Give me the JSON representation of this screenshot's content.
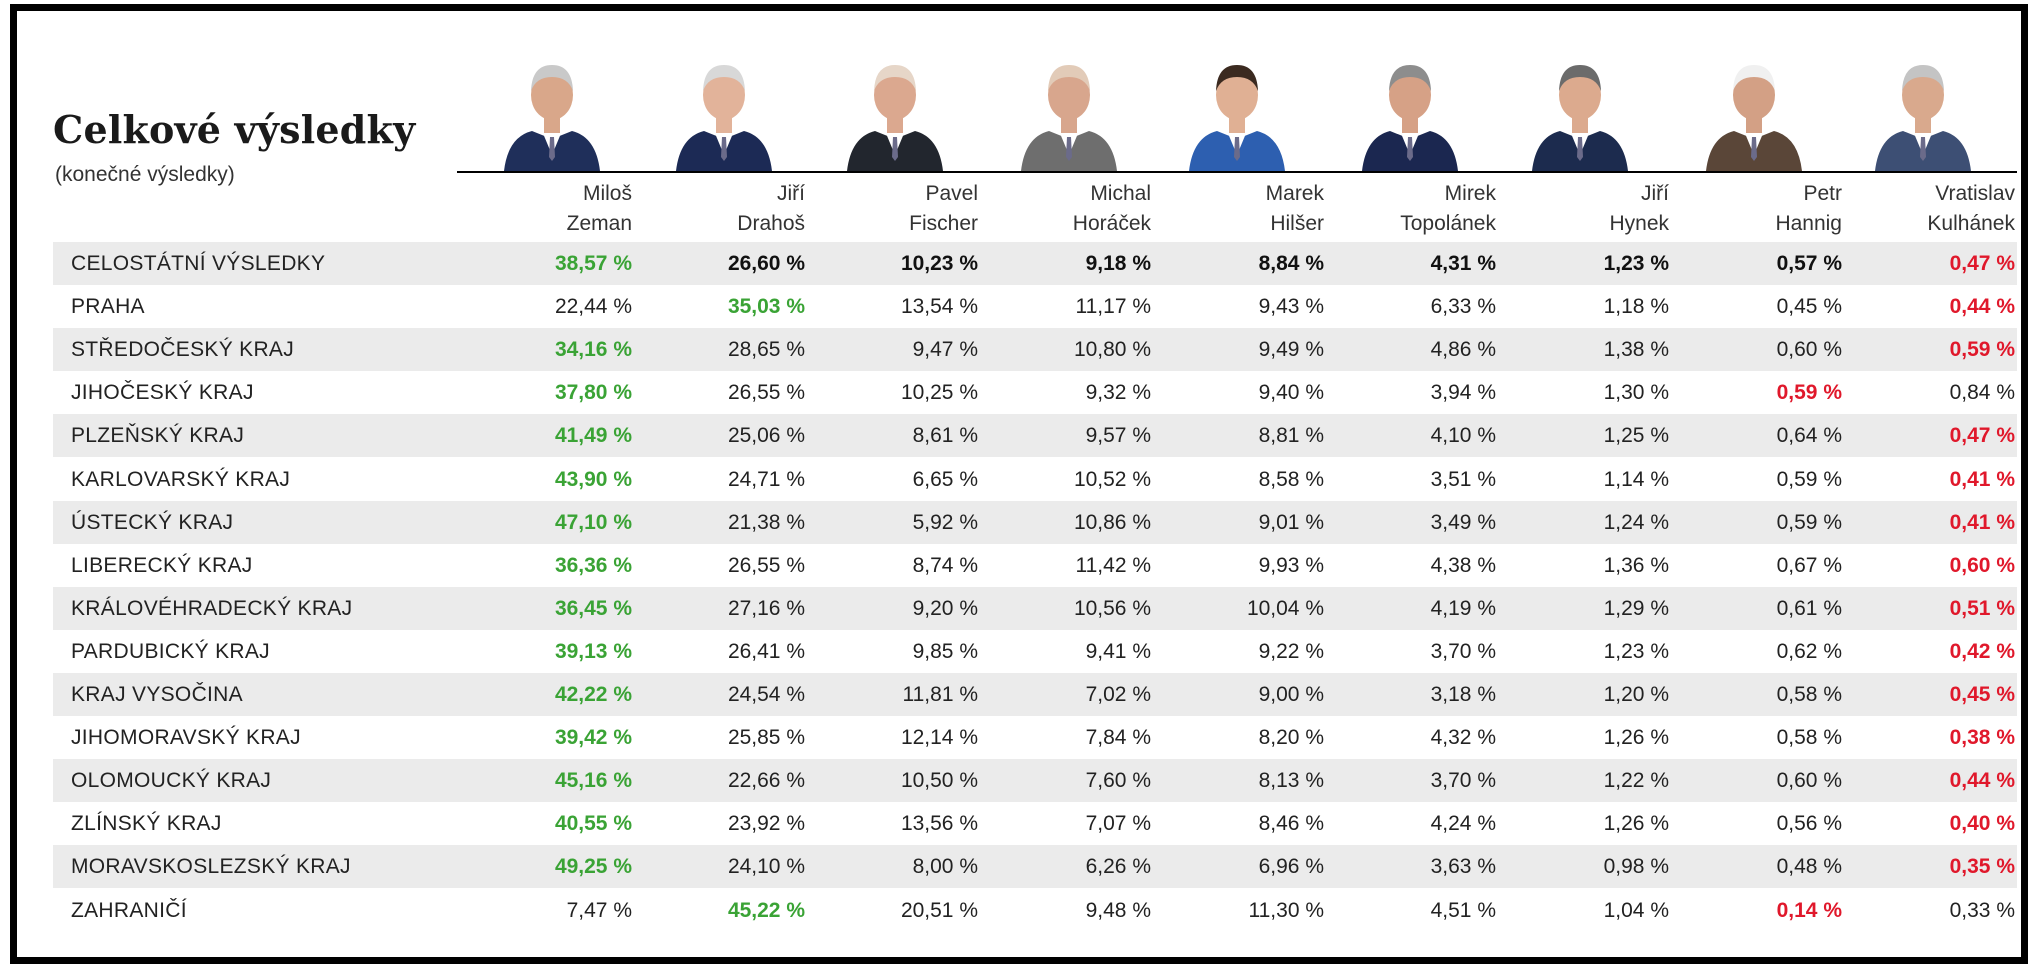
{
  "title": "Celkové výsledky",
  "subtitle": "(konečné výsledky)",
  "candidates": [
    {
      "first": "Miloš",
      "last": "Zeman"
    },
    {
      "first": "Jiří",
      "last": "Drahoš"
    },
    {
      "first": "Pavel",
      "last": "Fischer"
    },
    {
      "first": "Michal",
      "last": "Horáček"
    },
    {
      "first": "Marek",
      "last": "Hilšer"
    },
    {
      "first": "Mirek",
      "last": "Topolánek"
    },
    {
      "first": "Jiří",
      "last": "Hynek"
    },
    {
      "first": "Petr",
      "last": "Hannig"
    },
    {
      "first": "Vratislav",
      "last": "Kulhánek"
    }
  ],
  "rows": [
    {
      "region": "CELOSTÁTNÍ VÝSLEDKY",
      "values": [
        "38,57 %",
        "26,60 %",
        "10,23 %",
        "9,18 %",
        "8,84 %",
        "4,31 %",
        "1,23 %",
        "0,57 %",
        "0,47 %"
      ],
      "max_index": 0,
      "min_index": 8,
      "national": true
    },
    {
      "region": "PRAHA",
      "values": [
        "22,44 %",
        "35,03 %",
        "13,54 %",
        "11,17 %",
        "9,43 %",
        "6,33 %",
        "1,18 %",
        "0,45 %",
        "0,44 %"
      ],
      "max_index": 1,
      "min_index": 8
    },
    {
      "region": "STŘEDOČESKÝ KRAJ",
      "values": [
        "34,16 %",
        "28,65 %",
        "9,47 %",
        "10,80 %",
        "9,49 %",
        "4,86 %",
        "1,38 %",
        "0,60 %",
        "0,59 %"
      ],
      "max_index": 0,
      "min_index": 8
    },
    {
      "region": "JIHOČESKÝ KRAJ",
      "values": [
        "37,80 %",
        "26,55 %",
        "10,25 %",
        "9,32 %",
        "9,40 %",
        "3,94 %",
        "1,30 %",
        "0,59 %",
        "0,84 %"
      ],
      "max_index": 0,
      "min_index": 7
    },
    {
      "region": "PLZEŇSKÝ KRAJ",
      "values": [
        "41,49 %",
        "25,06 %",
        "8,61 %",
        "9,57 %",
        "8,81 %",
        "4,10 %",
        "1,25 %",
        "0,64 %",
        "0,47 %"
      ],
      "max_index": 0,
      "min_index": 8
    },
    {
      "region": "KARLOVARSKÝ KRAJ",
      "values": [
        "43,90 %",
        "24,71 %",
        "6,65 %",
        "10,52 %",
        "8,58 %",
        "3,51 %",
        "1,14 %",
        "0,59 %",
        "0,41 %"
      ],
      "max_index": 0,
      "min_index": 8
    },
    {
      "region": "ÚSTECKÝ KRAJ",
      "values": [
        "47,10 %",
        "21,38 %",
        "5,92 %",
        "10,86 %",
        "9,01 %",
        "3,49 %",
        "1,24 %",
        "0,59 %",
        "0,41 %"
      ],
      "max_index": 0,
      "min_index": 8
    },
    {
      "region": "LIBERECKÝ KRAJ",
      "values": [
        "36,36 %",
        "26,55 %",
        "8,74 %",
        "11,42 %",
        "9,93 %",
        "4,38 %",
        "1,36 %",
        "0,67 %",
        "0,60 %"
      ],
      "max_index": 0,
      "min_index": 8
    },
    {
      "region": "KRÁLOVÉHRADECKÝ KRAJ",
      "values": [
        "36,45 %",
        "27,16 %",
        "9,20 %",
        "10,56 %",
        "10,04 %",
        "4,19 %",
        "1,29 %",
        "0,61 %",
        "0,51 %"
      ],
      "max_index": 0,
      "min_index": 8
    },
    {
      "region": "PARDUBICKÝ KRAJ",
      "values": [
        "39,13 %",
        "26,41 %",
        "9,85 %",
        "9,41 %",
        "9,22 %",
        "3,70 %",
        "1,23 %",
        "0,62 %",
        "0,42 %"
      ],
      "max_index": 0,
      "min_index": 8
    },
    {
      "region": "KRAJ VYSOČINA",
      "values": [
        "42,22 %",
        "24,54 %",
        "11,81 %",
        "7,02 %",
        "9,00 %",
        "3,18 %",
        "1,20 %",
        "0,58 %",
        "0,45 %"
      ],
      "max_index": 0,
      "min_index": 8
    },
    {
      "region": "JIHOMORAVSKÝ KRAJ",
      "values": [
        "39,42 %",
        "25,85 %",
        "12,14 %",
        "7,84 %",
        "8,20 %",
        "4,32 %",
        "1,26 %",
        "0,58 %",
        "0,38 %"
      ],
      "max_index": 0,
      "min_index": 8
    },
    {
      "region": "OLOMOUCKÝ KRAJ",
      "values": [
        "45,16 %",
        "22,66 %",
        "10,50 %",
        "7,60 %",
        "8,13 %",
        "3,70 %",
        "1,22 %",
        "0,60 %",
        "0,44 %"
      ],
      "max_index": 0,
      "min_index": 8
    },
    {
      "region": "ZLÍNSKÝ KRAJ",
      "values": [
        "40,55 %",
        "23,92 %",
        "13,56 %",
        "7,07 %",
        "8,46 %",
        "4,24 %",
        "1,26 %",
        "0,56 %",
        "0,40 %"
      ],
      "max_index": 0,
      "min_index": 8
    },
    {
      "region": "MORAVSKOSLEZSKÝ KRAJ",
      "values": [
        "49,25 %",
        "24,10 %",
        "8,00 %",
        "6,26 %",
        "6,96 %",
        "3,63 %",
        "0,98 %",
        "0,48 %",
        "0,35 %"
      ],
      "max_index": 0,
      "min_index": 8
    },
    {
      "region": "ZAHRANIČÍ",
      "values": [
        "7,47 %",
        "45,22 %",
        "20,51 %",
        "9,48 %",
        "11,30 %",
        "4,51 %",
        "1,04 %",
        "0,14 %",
        "0,33 %"
      ],
      "max_index": 1,
      "min_index": 7
    }
  ],
  "colors": {
    "max": "#3aa335",
    "min": "#e0182b",
    "row_shade": "#ebebeb"
  },
  "chart_data": {
    "type": "table",
    "title": "Celkové výsledky",
    "subtitle": "(konečné výsledky)",
    "columns": [
      "Miloš Zeman",
      "Jiří Drahoš",
      "Pavel Fischer",
      "Michal Horáček",
      "Marek Hilšer",
      "Mirek Topolánek",
      "Jiří Hynek",
      "Petr Hannig",
      "Vratislav Kulhánek"
    ],
    "rows": [
      "CELOSTÁTNÍ VÝSLEDKY",
      "PRAHA",
      "STŘEDOČESKÝ KRAJ",
      "JIHOČESKÝ KRAJ",
      "PLZEŇSKÝ KRAJ",
      "KARLOVARSKÝ KRAJ",
      "ÚSTECKÝ KRAJ",
      "LIBERECKÝ KRAJ",
      "KRÁLOVÉHRADECKÝ KRAJ",
      "PARDUBICKÝ KRAJ",
      "KRAJ VYSOČINA",
      "JIHOMORAVSKÝ KRAJ",
      "OLOMOUCKÝ KRAJ",
      "ZLÍNSKÝ KRAJ",
      "MORAVSKOSLEZSKÝ KRAJ",
      "ZAHRANIČÍ"
    ],
    "values": [
      [
        38.57,
        26.6,
        10.23,
        9.18,
        8.84,
        4.31,
        1.23,
        0.57,
        0.47
      ],
      [
        22.44,
        35.03,
        13.54,
        11.17,
        9.43,
        6.33,
        1.18,
        0.45,
        0.44
      ],
      [
        34.16,
        28.65,
        9.47,
        10.8,
        9.49,
        4.86,
        1.38,
        0.6,
        0.59
      ],
      [
        37.8,
        26.55,
        10.25,
        9.32,
        9.4,
        3.94,
        1.3,
        0.59,
        0.84
      ],
      [
        41.49,
        25.06,
        8.61,
        9.57,
        8.81,
        4.1,
        1.25,
        0.64,
        0.47
      ],
      [
        43.9,
        24.71,
        6.65,
        10.52,
        8.58,
        3.51,
        1.14,
        0.59,
        0.41
      ],
      [
        47.1,
        21.38,
        5.92,
        10.86,
        9.01,
        3.49,
        1.24,
        0.59,
        0.41
      ],
      [
        36.36,
        26.55,
        8.74,
        11.42,
        9.93,
        4.38,
        1.36,
        0.67,
        0.6
      ],
      [
        36.45,
        27.16,
        9.2,
        10.56,
        10.04,
        4.19,
        1.29,
        0.61,
        0.51
      ],
      [
        39.13,
        26.41,
        9.85,
        9.41,
        9.22,
        3.7,
        1.23,
        0.62,
        0.42
      ],
      [
        42.22,
        24.54,
        11.81,
        7.02,
        9.0,
        3.18,
        1.2,
        0.58,
        0.45
      ],
      [
        39.42,
        25.85,
        12.14,
        7.84,
        8.2,
        4.32,
        1.26,
        0.58,
        0.38
      ],
      [
        45.16,
        22.66,
        10.5,
        7.6,
        8.13,
        3.7,
        1.22,
        0.6,
        0.44
      ],
      [
        40.55,
        23.92,
        13.56,
        7.07,
        8.46,
        4.24,
        1.26,
        0.56,
        0.4
      ],
      [
        49.25,
        24.1,
        8.0,
        6.26,
        6.96,
        3.63,
        0.98,
        0.48,
        0.35
      ],
      [
        7.47,
        45.22,
        20.51,
        9.48,
        11.3,
        4.51,
        1.04,
        0.14,
        0.33
      ]
    ],
    "unit": "%",
    "highlight": "per row: highest value green, lowest value red"
  }
}
